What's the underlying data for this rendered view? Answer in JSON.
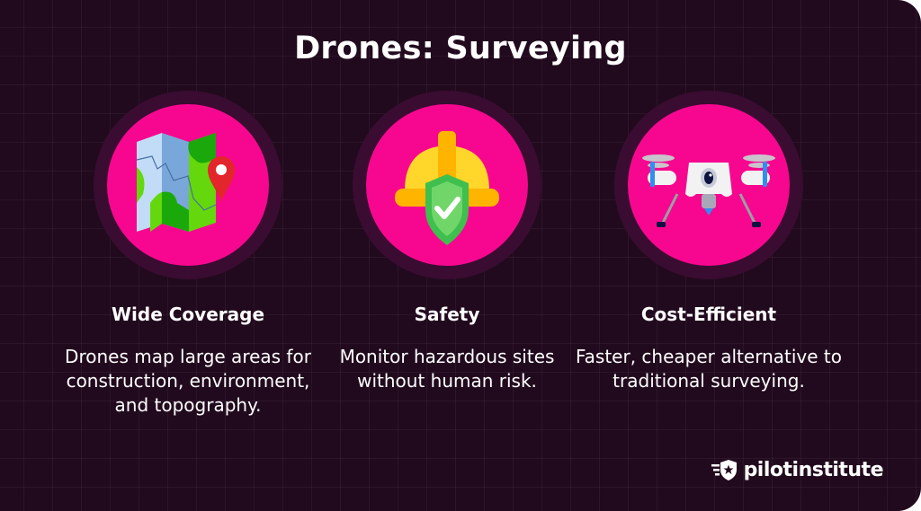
{
  "title": "Drones: Surveying",
  "colors": {
    "background": "#220a1e",
    "circle": "#f7078f",
    "halo": "#3a0c31",
    "text": "#ffffff"
  },
  "features": [
    {
      "icon": "map-pin-icon",
      "heading": "Wide Coverage",
      "description": "Drones map large areas for construction, environment, and topography."
    },
    {
      "icon": "hard-hat-shield-icon",
      "heading": "Safety",
      "description": "Monitor hazardous sites without human risk."
    },
    {
      "icon": "drone-icon",
      "heading": "Cost-Efficient",
      "description": "Faster, cheaper alternative to traditional surveying."
    }
  ],
  "logo": {
    "text": "pilotinstitute",
    "icon": "winged-shield-star-icon"
  }
}
